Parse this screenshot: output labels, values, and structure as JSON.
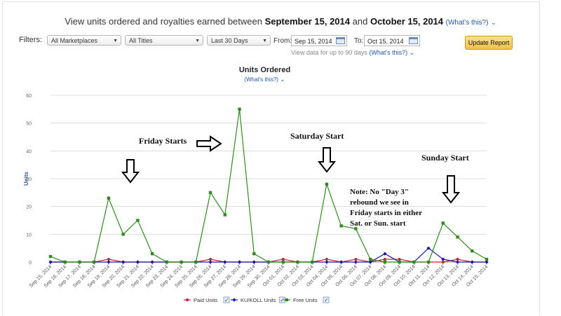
{
  "header": {
    "prefix": "View units ordered and royalties earned between",
    "start": "September 15, 2014",
    "and": "and",
    "end": "October 15, 2014",
    "whats": "(What's this?)"
  },
  "filters": {
    "label": "Filters:",
    "marketplace": "All Marketplaces",
    "titles": "All Titles",
    "range": "Last 30 Days",
    "from_label": "From:",
    "from_value": "Sep 15, 2014",
    "to_label": "To:",
    "to_value": "Oct 15, 2014",
    "update_button": "Update Report",
    "hint": "View data for up to 90 days",
    "hint_whats": "(What's this?)"
  },
  "chart_data": {
    "type": "line",
    "title": "Units Ordered",
    "subtitle": "(What's this?)",
    "ylabel": "Units",
    "ylim": [
      0,
      60
    ],
    "yticks": [
      0,
      10,
      20,
      30,
      40,
      50,
      60
    ],
    "grid": true,
    "legend_position": "bottom",
    "categories": [
      "Sep 15, 2014",
      "Sep 16, 2014",
      "Sep 17, 2014",
      "Sep 18, 2014",
      "Sep 19, 2014",
      "Sep 20, 2014",
      "Sep 21, 2014",
      "Sep 22, 2014",
      "Sep 23, 2014",
      "Sep 24, 2014",
      "Sep 25, 2014",
      "Sep 26, 2014",
      "Sep 27, 2014",
      "Sep 28, 2014",
      "Sep 29, 2014",
      "Sep 30, 2014",
      "Oct 01, 2014",
      "Oct 02, 2014",
      "Oct 03, 2014",
      "Oct 04, 2014",
      "Oct 05, 2014",
      "Oct 06, 2014",
      "Oct 07, 2014",
      "Oct 08, 2014",
      "Oct 09, 2014",
      "Oct 10, 2014",
      "Oct 11, 2014",
      "Oct 12, 2014",
      "Oct 13, 2014",
      "Oct 14, 2014",
      "Oct 15, 2014"
    ],
    "series": [
      {
        "name": "Paid Units",
        "color": "#cc1f3c",
        "marker": "circle",
        "values": [
          0,
          0,
          0,
          0,
          1,
          0,
          0,
          0,
          0,
          0,
          0,
          1,
          0,
          0,
          0,
          0,
          1,
          0,
          0,
          1,
          0,
          1,
          0,
          1,
          1,
          0,
          0,
          0,
          1,
          0,
          0
        ]
      },
      {
        "name": "KU/KOLL Units",
        "color": "#1a1a9c",
        "marker": "diamond",
        "values": [
          0,
          0,
          0,
          0,
          0,
          0,
          0,
          0,
          0,
          0,
          0,
          0,
          0,
          0,
          0,
          0,
          0,
          0,
          0,
          0,
          0,
          0,
          0,
          3,
          0,
          0,
          5,
          1,
          0,
          0,
          0
        ]
      },
      {
        "name": "Free Units",
        "color": "#2e8b1e",
        "marker": "square",
        "values": [
          2,
          0,
          0,
          0,
          23,
          10,
          15,
          3,
          0,
          0,
          0,
          25,
          17,
          55,
          3,
          0,
          0,
          0,
          0,
          28,
          13,
          12,
          1,
          0,
          0,
          0,
          0,
          14,
          9,
          4,
          1
        ]
      }
    ],
    "annotations": [
      {
        "text": "Friday Starts"
      },
      {
        "text": "Saturday Start"
      },
      {
        "text": "Sunday Start"
      },
      {
        "text": "Note: No \"Day 3\" rebound we see in Friday starts in either Sat. or Sun. start"
      }
    ]
  }
}
